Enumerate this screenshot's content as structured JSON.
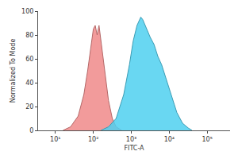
{
  "chart_data": {
    "type": "area",
    "x_label": "FITC-A",
    "y_label": "Normalized To Mode",
    "log": "x",
    "xlim": [
      3.5,
      400000
    ],
    "xticks": [
      {
        "value": 10,
        "label": "10¹"
      },
      {
        "value": 100,
        "label": "10²"
      },
      {
        "value": 1000,
        "label": "10³"
      },
      {
        "value": 10000,
        "label": "10⁴"
      },
      {
        "value": 100000,
        "label": "10⁵"
      }
    ],
    "ylim": [
      0,
      100
    ],
    "yticks": [
      0,
      20,
      40,
      60,
      80,
      100
    ],
    "grid": false,
    "series": [
      {
        "color": "#f08a8a",
        "x": [
          15.8,
          25.1,
          39.8,
          56.2,
          70.8,
          89.1,
          100,
          112,
          126,
          141,
          158,
          200,
          251,
          316,
          398,
          562
        ],
        "values": [
          0,
          3,
          12,
          30,
          50,
          75,
          85,
          88,
          80,
          88,
          75,
          50,
          25,
          10,
          3,
          0
        ]
      },
      {
        "color": "#4fd0f0",
        "x": [
          158,
          251,
          398,
          631,
          891,
          1122,
          1413,
          1778,
          1995,
          2512,
          3162,
          3981,
          5012,
          6310,
          7943,
          10000,
          12589,
          15849,
          22387,
          31623,
          39811
        ],
        "values": [
          0,
          3,
          10,
          30,
          55,
          75,
          88,
          95,
          93,
          85,
          78,
          72,
          62,
          55,
          45,
          35,
          25,
          15,
          6,
          2,
          0
        ]
      }
    ]
  }
}
